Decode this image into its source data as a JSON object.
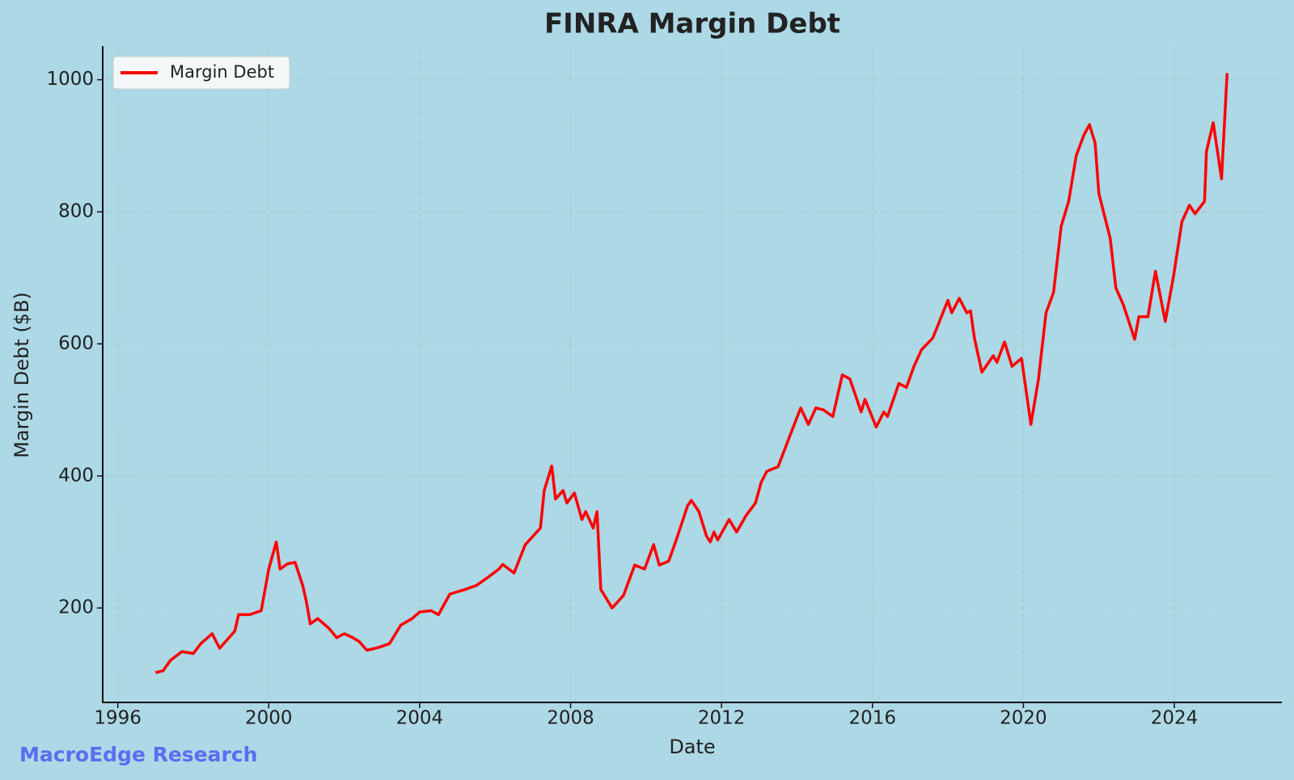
{
  "chart_data": {
    "type": "line",
    "title": "FINRA Margin Debt",
    "xlabel": "Date",
    "ylabel": "Margin Debt ($B)",
    "watermark": "MacroEdge Research",
    "grid": true,
    "legend": "upper left",
    "xlim": [
      1995.6,
      2026.85
    ],
    "xticks": [
      1996,
      2000,
      2004,
      2008,
      2012,
      2016,
      2020,
      2024
    ],
    "ylim": [
      57,
      1051
    ],
    "yticks": [
      200,
      400,
      600,
      800,
      1000
    ],
    "x": [
      1997.0,
      1997.2,
      1997.4,
      1997.7,
      1998.0,
      1998.2,
      1998.5,
      1998.7,
      1998.9,
      1999.1,
      1999.2,
      1999.5,
      1999.8,
      2000.0,
      2000.2,
      2000.3,
      2000.5,
      2000.7,
      2000.9,
      2001.0,
      2001.1,
      2001.3,
      2001.6,
      2001.8,
      2002.0,
      2002.2,
      2002.4,
      2002.6,
      2002.9,
      2003.2,
      2003.5,
      2003.8,
      2004.0,
      2004.3,
      2004.5,
      2004.8,
      2005.2,
      2005.5,
      2005.8,
      2006.1,
      2006.2,
      2006.5,
      2006.8,
      2007.2,
      2007.3,
      2007.5,
      2007.6,
      2007.8,
      2007.9,
      2008.1,
      2008.3,
      2008.4,
      2008.6,
      2008.7,
      2008.8,
      2009.1,
      2009.4,
      2009.7,
      2009.96,
      2010.2,
      2010.35,
      2010.6,
      2010.8,
      2011.1,
      2011.2,
      2011.4,
      2011.6,
      2011.7,
      2011.8,
      2011.9,
      2012.2,
      2012.4,
      2012.65,
      2012.9,
      2013.05,
      2013.2,
      2013.5,
      2013.8,
      2014.1,
      2014.3,
      2014.5,
      2014.7,
      2014.95,
      2015.2,
      2015.4,
      2015.7,
      2015.8,
      2016.1,
      2016.3,
      2016.4,
      2016.7,
      2016.9,
      2017.1,
      2017.3,
      2017.6,
      2018.0,
      2018.1,
      2018.3,
      2018.5,
      2018.6,
      2018.7,
      2018.9,
      2019.2,
      2019.3,
      2019.5,
      2019.7,
      2019.95,
      2020.2,
      2020.4,
      2020.6,
      2020.8,
      2021.0,
      2021.2,
      2021.4,
      2021.6,
      2021.75,
      2021.9,
      2022.0,
      2022.3,
      2022.45,
      2022.65,
      2022.95,
      2023.06,
      2023.3,
      2023.5,
      2023.76,
      2023.98,
      2024.2,
      2024.4,
      2024.55,
      2024.8,
      2024.85,
      2025.03,
      2025.25,
      2025.4
    ],
    "series": [
      {
        "name": "Margin Debt",
        "color": "#ff0000",
        "values": [
          102,
          105,
          121,
          134,
          131,
          146,
          161,
          139,
          152,
          165,
          190,
          190,
          196,
          259,
          300,
          259,
          267,
          269,
          234,
          209,
          176,
          184,
          169,
          155,
          161,
          156,
          149,
          136,
          140,
          146,
          174,
          184,
          194,
          196,
          190,
          221,
          228,
          234,
          246,
          259,
          266,
          253,
          296,
          321,
          378,
          415,
          365,
          378,
          359,
          374,
          334,
          346,
          321,
          346,
          228,
          200,
          219,
          265,
          259,
          296,
          265,
          271,
          303,
          355,
          363,
          346,
          309,
          300,
          315,
          303,
          334,
          315,
          340,
          359,
          390,
          407,
          414,
          459,
          503,
          478,
          503,
          500,
          490,
          553,
          547,
          497,
          516,
          474,
          497,
          490,
          540,
          534,
          566,
          591,
          609,
          666,
          647,
          669,
          647,
          650,
          609,
          557,
          582,
          572,
          603,
          566,
          578,
          478,
          547,
          647,
          678,
          778,
          816,
          885,
          916,
          932,
          904,
          828,
          760,
          685,
          659,
          607,
          641,
          641,
          710,
          634,
          703,
          785,
          810,
          797,
          816,
          891,
          935,
          850,
          1010
        ]
      }
    ]
  }
}
